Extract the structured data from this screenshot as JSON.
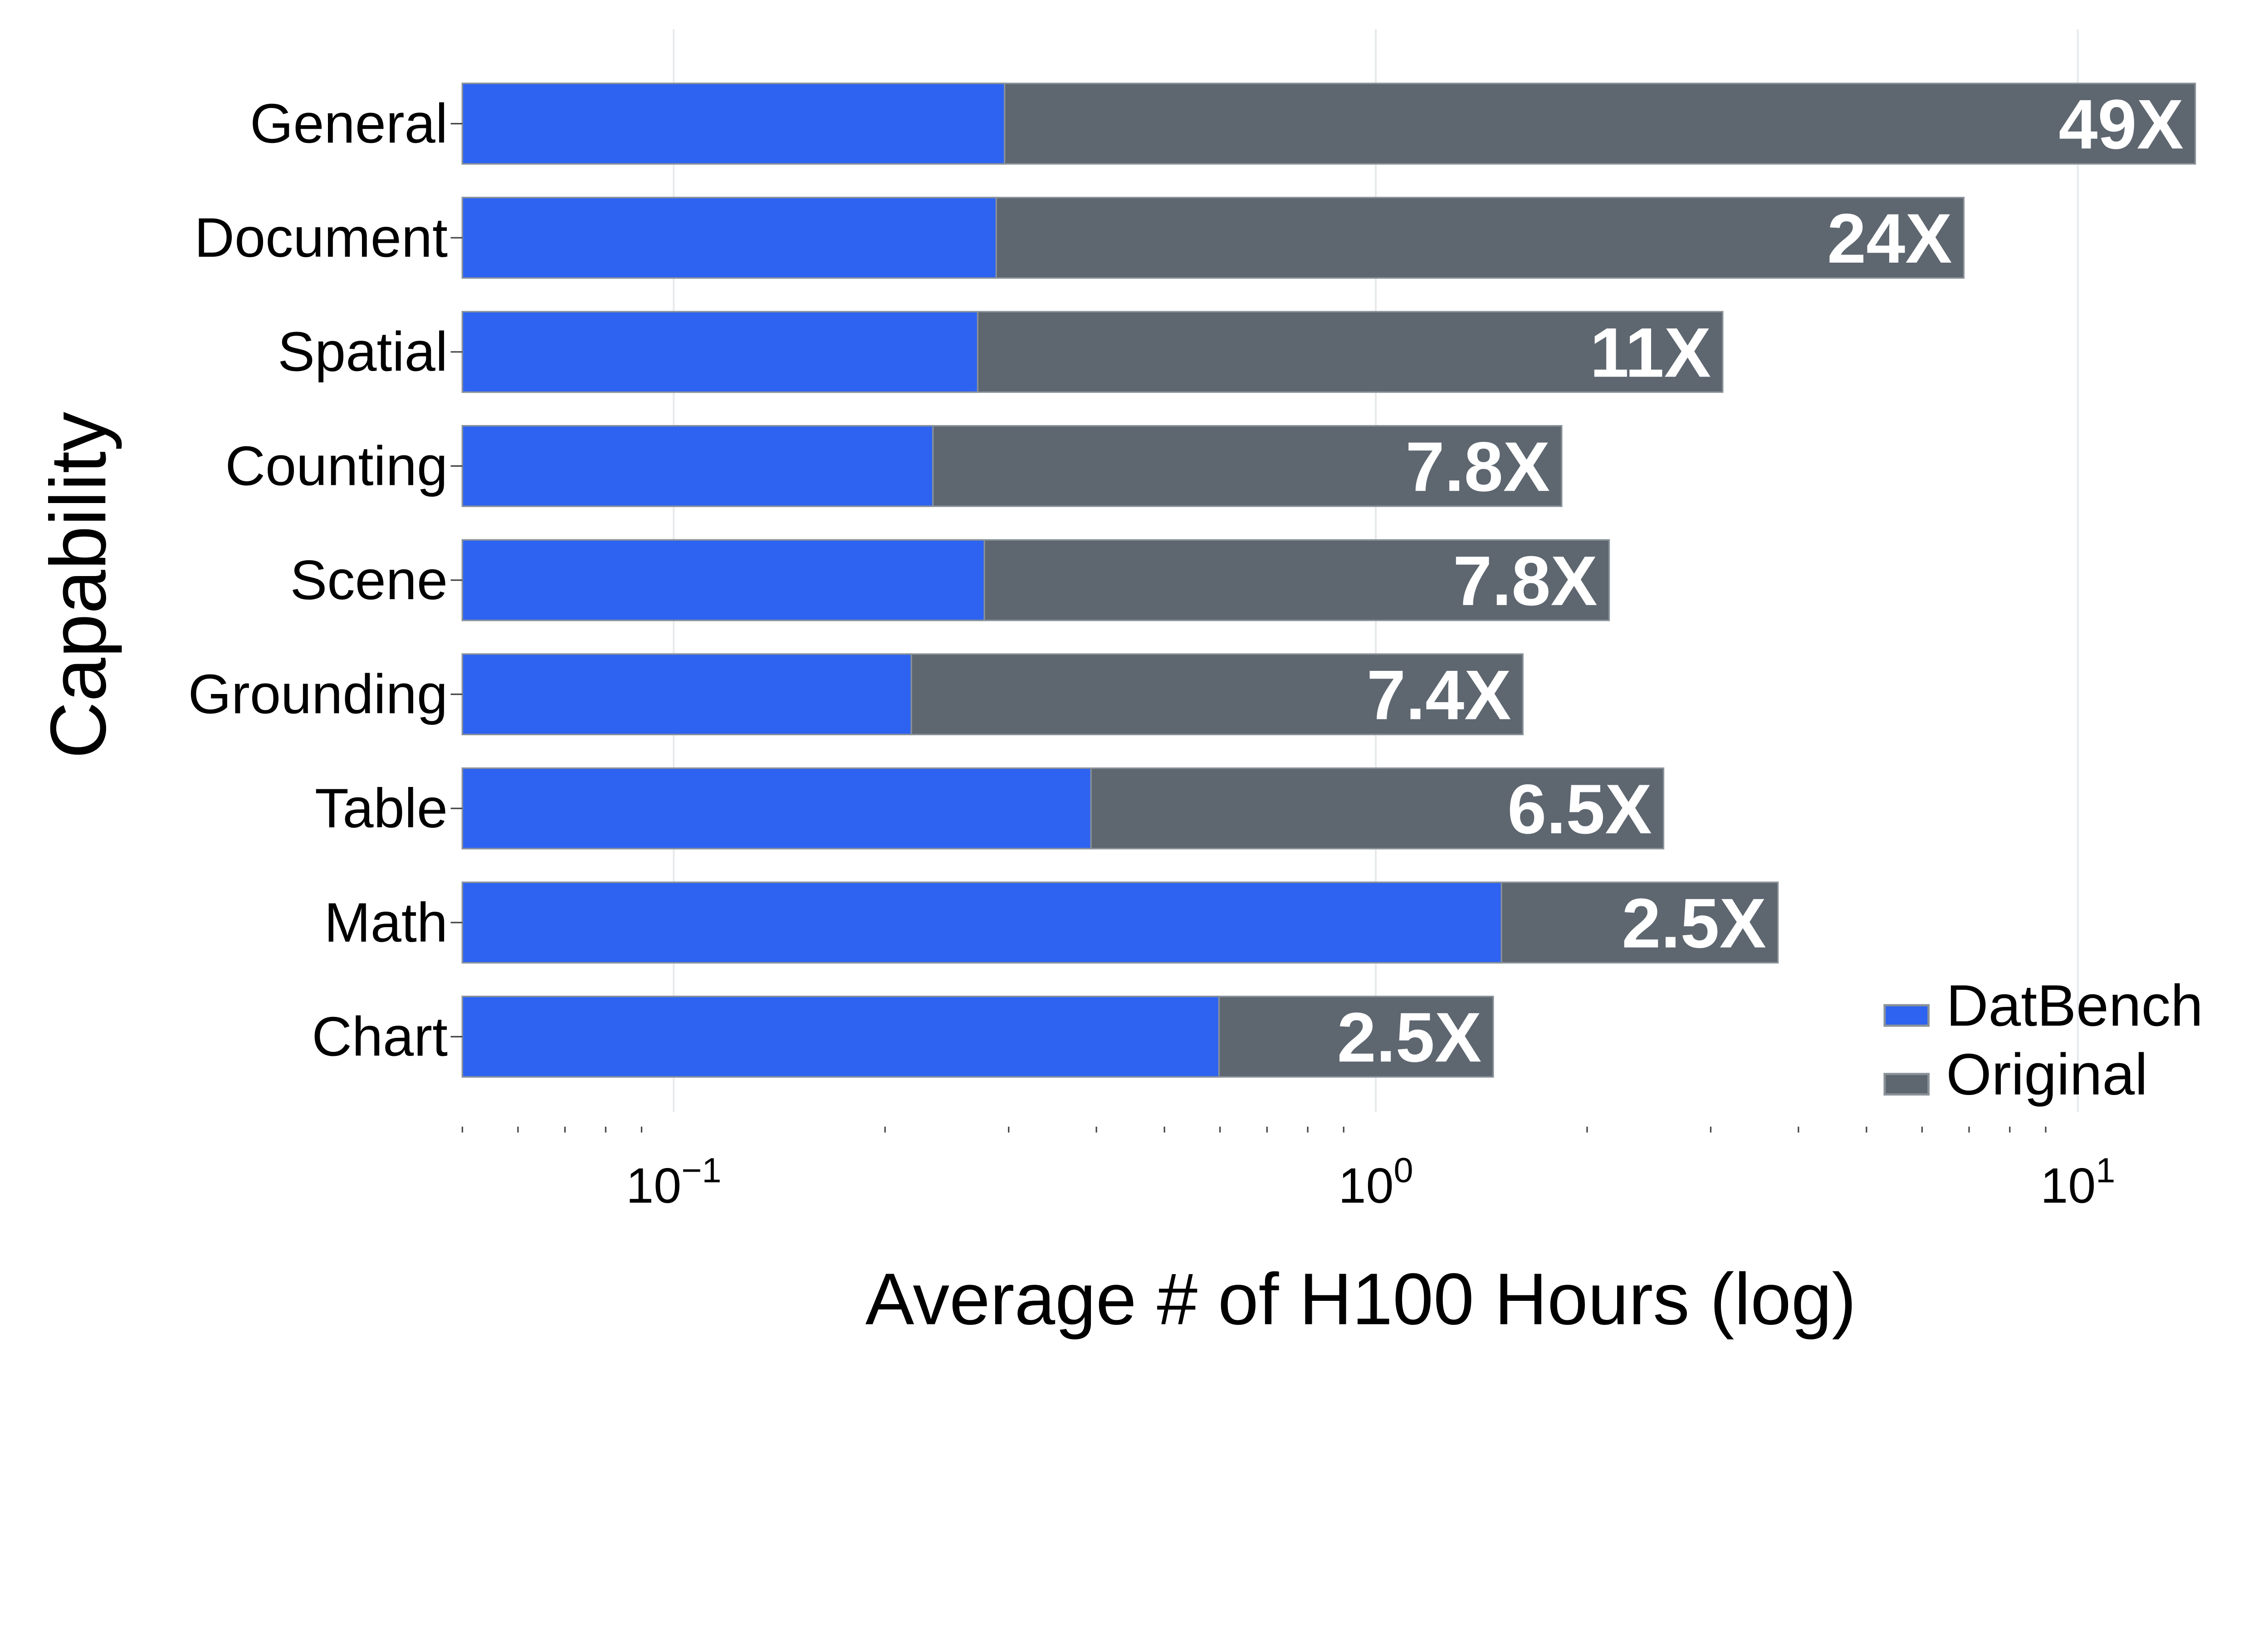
{
  "chart_data": {
    "type": "bar",
    "orientation": "horizontal",
    "xlabel": "Average # of H100 Hours (log)",
    "ylabel": "Capability",
    "xscale": "log",
    "xlim": [
      0.05,
      15.4
    ],
    "xticks": [
      {
        "value": 0.1,
        "base": "10",
        "exp": "−1"
      },
      {
        "value": 1,
        "base": "10",
        "exp": "0"
      },
      {
        "value": 10,
        "base": "10",
        "exp": "1"
      }
    ],
    "grid": true,
    "legend_position": "bottom-right",
    "categories": [
      "General",
      "Document",
      "Spatial",
      "Counting",
      "Scene",
      "Grounding",
      "Table",
      "Math",
      "Chart"
    ],
    "series": [
      {
        "name": "DatBench",
        "color": "#2D63F0",
        "values": [
          0.296,
          0.288,
          0.271,
          0.234,
          0.277,
          0.218,
          0.393,
          1.51,
          0.598
        ]
      },
      {
        "name": "Original",
        "color": "#5E6770",
        "values": [
          14.7,
          6.88,
          3.12,
          1.84,
          2.15,
          1.62,
          2.57,
          3.74,
          1.47
        ]
      }
    ],
    "data_labels": [
      "49X",
      "24X",
      "11X",
      "7.8X",
      "7.8X",
      "7.4X",
      "6.5X",
      "2.5X",
      "2.5X"
    ]
  }
}
